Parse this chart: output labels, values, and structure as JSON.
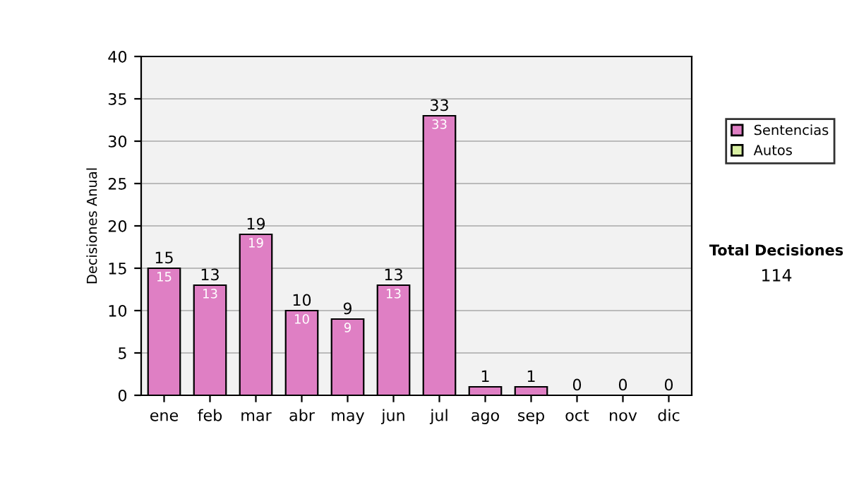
{
  "chart_data": {
    "type": "bar",
    "stacked": true,
    "ylabel": "Decisiones Anual",
    "categories": [
      "ene",
      "feb",
      "mar",
      "abr",
      "may",
      "jun",
      "jul",
      "ago",
      "sep",
      "oct",
      "nov",
      "dic"
    ],
    "series": [
      {
        "name": "Sentencias",
        "color": "#df7fc4",
        "values": [
          15,
          13,
          19,
          10,
          9,
          13,
          33,
          1,
          1,
          0,
          0,
          0
        ],
        "value_labels": [
          "15",
          "13",
          "19",
          "10",
          "9",
          "13",
          "33",
          null,
          null,
          null,
          null,
          null
        ]
      },
      {
        "name": "Autos",
        "color": "#d9f0a3",
        "values": [
          0,
          0,
          0,
          0,
          0,
          0,
          0,
          0,
          0,
          0,
          0,
          0
        ]
      }
    ],
    "totals": [
      "15",
      "13",
      "19",
      "10",
      "9",
      "13",
      "33",
      "1",
      "1",
      "0",
      "0",
      "0"
    ],
    "ylim": [
      0,
      40
    ],
    "yticks": [
      0,
      5,
      10,
      15,
      20,
      25,
      30,
      35,
      40
    ],
    "grid": "y",
    "legend": "right",
    "annotations": [
      "Total Decisiones",
      "114"
    ]
  }
}
